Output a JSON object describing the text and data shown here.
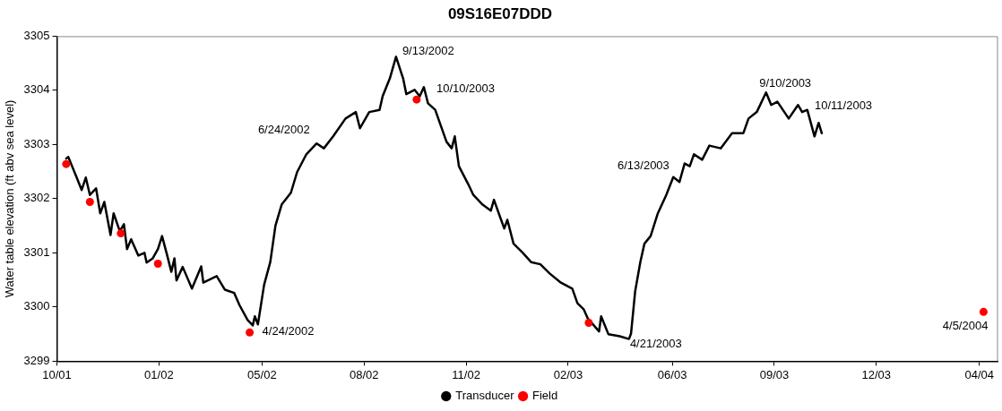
{
  "chart_data": {
    "type": "line",
    "title": "09S16E07DDD",
    "ylabel": "Water table elevation (ft abv sea level)",
    "xlim": [
      "2001-10-19",
      "2004-04-19"
    ],
    "xticks": [
      {
        "value": "2001-10-19",
        "label": "10/01"
      },
      {
        "value": "2002-01-26",
        "label": "01/02"
      },
      {
        "value": "2002-05-06",
        "label": "05/02"
      },
      {
        "value": "2002-08-13",
        "label": "08/02"
      },
      {
        "value": "2002-11-20",
        "label": "11/02"
      },
      {
        "value": "2003-02-27",
        "label": "02/03"
      },
      {
        "value": "2003-06-08",
        "label": "06/03"
      },
      {
        "value": "2003-09-15",
        "label": "09/03"
      },
      {
        "value": "2003-12-23",
        "label": "12/03"
      },
      {
        "value": "2004-04-01",
        "label": "04/04"
      }
    ],
    "ylim": [
      3299,
      3305
    ],
    "yticks": [
      3299,
      3300,
      3301,
      3302,
      3303,
      3304,
      3305
    ],
    "grid": false,
    "legend": "bottom",
    "annotations": [
      {
        "text": "9/13/2002",
        "x": "2002-09-13",
        "y": 3304.62
      },
      {
        "text": "10/10/2003",
        "x": "2002-10-10",
        "y": 3304.06
      },
      {
        "text": "6/24/2002",
        "x": "2002-06-24",
        "y": 3302.9
      },
      {
        "text": "4/24/2002",
        "x": "2002-04-24",
        "y": 3299.53
      },
      {
        "text": "6/13/2003",
        "x": "2003-06-13",
        "y": 3302.34
      },
      {
        "text": "4/21/2003",
        "x": "2003-04-21",
        "y": 3299.45
      },
      {
        "text": "9/10/2003",
        "x": "2003-09-10",
        "y": 3303.85
      },
      {
        "text": "10/11/2003",
        "x": "2003-10-12",
        "y": 3303.6
      },
      {
        "text": "4/5/2004",
        "x": "2004-04-05",
        "y": 3299.91
      }
    ],
    "series": [
      {
        "name": "Transducer",
        "type": "line",
        "color": "#000000",
        "marker": "none",
        "x": [
          "2001-10-28",
          "2001-10-30",
          "2001-11-07",
          "2001-11-12",
          "2001-11-16",
          "2001-11-20",
          "2001-11-26",
          "2001-11-30",
          "2001-12-04",
          "2001-12-10",
          "2001-12-13",
          "2001-12-19",
          "2001-12-23",
          "2001-12-26",
          "2001-12-30",
          "2002-01-06",
          "2002-01-12",
          "2002-01-14",
          "2002-01-20",
          "2002-01-25",
          "2002-01-29",
          "2002-02-03",
          "2002-02-07",
          "2002-02-10",
          "2002-02-12",
          "2002-02-18",
          "2002-02-27",
          "2002-03-08",
          "2002-03-10",
          "2002-03-23",
          "2002-03-31",
          "2002-04-09",
          "2002-04-14",
          "2002-04-22",
          "2002-04-27",
          "2002-04-29",
          "2002-05-02",
          "2002-05-08",
          "2002-05-14",
          "2002-05-19",
          "2002-05-25",
          "2002-06-03",
          "2002-06-09",
          "2002-06-18",
          "2002-06-28",
          "2002-07-05",
          "2002-07-14",
          "2002-07-26",
          "2002-08-05",
          "2002-08-09",
          "2002-08-18",
          "2002-08-28",
          "2002-08-31",
          "2002-09-07",
          "2002-09-13",
          "2002-09-20",
          "2002-09-23",
          "2002-10-01",
          "2002-10-06",
          "2002-10-10",
          "2002-10-14",
          "2002-10-21",
          "2002-11-01",
          "2002-11-06",
          "2002-11-09",
          "2002-11-13",
          "2002-11-22",
          "2002-11-27",
          "2002-12-06",
          "2002-12-14",
          "2002-12-17",
          "2002-12-23",
          "2002-12-27",
          "2002-12-30",
          "2003-01-05",
          "2003-01-14",
          "2003-01-22",
          "2003-01-31",
          "2003-02-09",
          "2003-02-20",
          "2003-03-03",
          "2003-03-08",
          "2003-03-14",
          "2003-03-18",
          "2003-03-29",
          "2003-03-31",
          "2003-04-07",
          "2003-04-18",
          "2003-04-27",
          "2003-04-29",
          "2003-05-03",
          "2003-05-08",
          "2003-05-12",
          "2003-05-18",
          "2003-05-25",
          "2003-06-02",
          "2003-06-09",
          "2003-06-15",
          "2003-06-20",
          "2003-06-25",
          "2003-06-29",
          "2003-07-07",
          "2003-07-14",
          "2003-07-25",
          "2003-08-05",
          "2003-08-16",
          "2003-08-21",
          "2003-08-29",
          "2003-09-07",
          "2003-09-12",
          "2003-09-18",
          "2003-09-29",
          "2003-10-08",
          "2003-10-12",
          "2003-10-17",
          "2003-10-24",
          "2003-10-28",
          "2003-10-31"
        ],
        "values": [
          3302.74,
          3302.77,
          3302.4,
          3302.16,
          3302.39,
          3302.07,
          3302.19,
          3301.73,
          3301.94,
          3301.33,
          3301.73,
          3301.4,
          3301.53,
          3301.07,
          3301.25,
          3300.95,
          3301.0,
          3300.82,
          3300.9,
          3301.07,
          3301.31,
          3300.95,
          3300.65,
          3300.9,
          3300.49,
          3300.74,
          3300.34,
          3300.75,
          3300.45,
          3300.57,
          3300.32,
          3300.26,
          3300.04,
          3299.76,
          3299.66,
          3299.83,
          3299.68,
          3300.41,
          3300.83,
          3301.5,
          3301.89,
          3302.11,
          3302.49,
          3302.82,
          3303.02,
          3302.93,
          3303.15,
          3303.48,
          3303.6,
          3303.3,
          3303.6,
          3303.64,
          3303.89,
          3304.22,
          3304.62,
          3304.21,
          3303.93,
          3304.01,
          3303.89,
          3304.06,
          3303.76,
          3303.64,
          3303.05,
          3302.93,
          3303.15,
          3302.6,
          3302.27,
          3302.07,
          3301.89,
          3301.78,
          3301.98,
          3301.66,
          3301.45,
          3301.61,
          3301.17,
          3301.0,
          3300.83,
          3300.79,
          3300.62,
          3300.45,
          3300.34,
          3300.07,
          3299.96,
          3299.79,
          3299.55,
          3299.83,
          3299.5,
          3299.46,
          3299.41,
          3299.51,
          3300.29,
          3300.83,
          3301.17,
          3301.31,
          3301.73,
          3302.06,
          3302.4,
          3302.31,
          3302.65,
          3302.6,
          3302.82,
          3302.72,
          3302.98,
          3302.93,
          3303.21,
          3303.21,
          3303.48,
          3303.6,
          3303.96,
          3303.73,
          3303.79,
          3303.48,
          3303.73,
          3303.6,
          3303.64,
          3303.15,
          3303.4,
          3303.21
        ]
      },
      {
        "name": "Field",
        "type": "scatter",
        "color": "#ff0000",
        "marker": "circle",
        "x": [
          "2001-10-28",
          "2001-11-20",
          "2001-12-20",
          "2002-01-25",
          "2002-04-24",
          "2002-10-03",
          "2003-03-19",
          "2004-04-05"
        ],
        "values": [
          3302.64,
          3301.94,
          3301.36,
          3300.8,
          3299.53,
          3303.83,
          3299.71,
          3299.91
        ]
      }
    ]
  }
}
